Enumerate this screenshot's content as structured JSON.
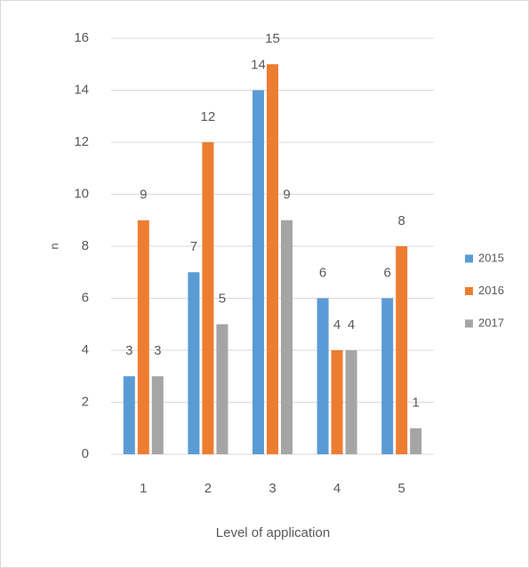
{
  "chart_data": {
    "type": "bar",
    "categories": [
      "1",
      "2",
      "3",
      "4",
      "5"
    ],
    "series": [
      {
        "name": "2015",
        "color": "#5b9bd5",
        "values": [
          3,
          7,
          14,
          6,
          6
        ]
      },
      {
        "name": "2016",
        "color": "#ed7d31",
        "values": [
          9,
          12,
          15,
          4,
          8
        ]
      },
      {
        "name": "2017",
        "color": "#a5a5a5",
        "values": [
          3,
          5,
          9,
          4,
          1
        ]
      }
    ],
    "x_label": "Level of application",
    "y_label": "n",
    "ylim": [
      0,
      16
    ],
    "yticks": [
      0,
      2,
      4,
      6,
      8,
      10,
      12,
      14,
      16
    ],
    "grid": true,
    "legend": "right"
  }
}
